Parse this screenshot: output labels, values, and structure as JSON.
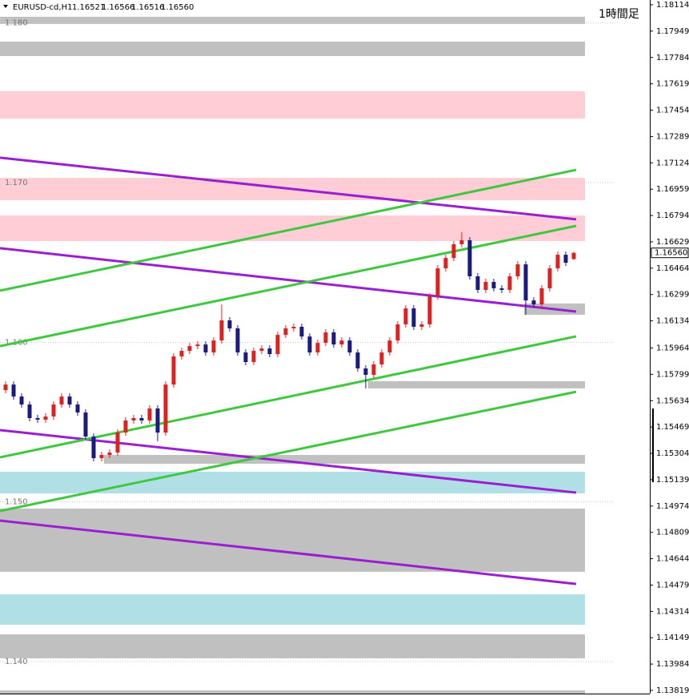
{
  "header": {
    "symbol": "EURUSD-cd,H1",
    "ohlc": [
      "1.16521",
      "1.16566",
      "1.16516",
      "1.16560"
    ],
    "timeframe": "1時間足"
  },
  "chart_data": {
    "type": "candlestick",
    "ylim": [
      1.13799,
      1.18144
    ],
    "yticks": [
      1.18114,
      1.17949,
      1.17784,
      1.17619,
      1.17454,
      1.17289,
      1.17124,
      1.16959,
      1.16794,
      1.16629,
      1.16464,
      1.16299,
      1.16134,
      1.15964,
      1.15799,
      1.15634,
      1.15469,
      1.15304,
      1.15139,
      1.14974,
      1.14809,
      1.14644,
      1.14479,
      1.14314,
      1.14149,
      1.13984,
      1.13819
    ],
    "levels": [
      {
        "value": 1.18,
        "label": "1.180"
      },
      {
        "value": 1.17,
        "label": "1.170"
      },
      {
        "value": 1.16,
        "label": "1.160"
      },
      {
        "value": 1.15,
        "label": "1.150"
      },
      {
        "value": 1.14,
        "label": "1.140"
      }
    ],
    "up_color": "#dd2020",
    "down_color": "#1a1a80",
    "open": [
      1.157,
      1.15735,
      1.1566,
      1.1561,
      1.15525,
      1.15515,
      1.15535,
      1.1561,
      1.1566,
      1.1561,
      1.1556,
      1.15409,
      1.15274,
      1.15294,
      1.15309,
      1.15434,
      1.1551,
      1.15525,
      1.1551,
      1.15585,
      1.15434,
      1.15735,
      1.15911,
      1.15946,
      1.15976,
      1.15986,
      1.15936,
      1.16011,
      1.16137,
      1.16087,
      1.15936,
      1.15876,
      1.15946,
      1.15961,
      1.15926,
      1.16046,
      1.16087,
      1.16097,
      1.16036,
      1.15936,
      1.15996,
      1.16062,
      1.15986,
      1.16011,
      1.15936,
      1.15836,
      1.15796,
      1.15861,
      1.15936,
      1.16011,
      1.16112,
      1.16212,
      1.16097,
      1.16112,
      1.16287,
      1.16463,
      1.16528,
      1.16614,
      1.16639,
      1.16413,
      1.16328,
      1.16378,
      1.16338,
      1.16328,
      1.16413,
      1.16488,
      1.16262,
      1.16237,
      1.16338,
      1.16463,
      1.16548,
      1.16521
    ],
    "high": [
      1.15755,
      1.15755,
      1.1568,
      1.1563,
      1.15545,
      1.15555,
      1.1563,
      1.1568,
      1.1568,
      1.1563,
      1.1558,
      1.15429,
      1.15314,
      1.15329,
      1.15454,
      1.1553,
      1.15545,
      1.15545,
      1.15605,
      1.15605,
      1.15755,
      1.15931,
      1.15966,
      1.15996,
      1.16006,
      1.16006,
      1.16031,
      1.16237,
      1.16157,
      1.16107,
      1.15956,
      1.15966,
      1.15981,
      1.15981,
      1.16066,
      1.16107,
      1.16117,
      1.16117,
      1.16056,
      1.16016,
      1.16082,
      1.16082,
      1.16031,
      1.16031,
      1.15956,
      1.15856,
      1.15881,
      1.15956,
      1.16031,
      1.16132,
      1.16232,
      1.16232,
      1.16132,
      1.16307,
      1.16483,
      1.16548,
      1.16634,
      1.16689,
      1.16659,
      1.16433,
      1.16398,
      1.16398,
      1.16358,
      1.16433,
      1.16508,
      1.16508,
      1.16282,
      1.16358,
      1.16483,
      1.16568,
      1.16568,
      1.16566
    ],
    "low": [
      1.1568,
      1.1564,
      1.1559,
      1.15505,
      1.15495,
      1.15495,
      1.15515,
      1.1559,
      1.1559,
      1.1554,
      1.15389,
      1.15254,
      1.15254,
      1.15274,
      1.15289,
      1.15414,
      1.1549,
      1.1549,
      1.1549,
      1.1538,
      1.15414,
      1.15715,
      1.15891,
      1.15926,
      1.15956,
      1.15916,
      1.15916,
      1.15991,
      1.16067,
      1.15916,
      1.15856,
      1.15856,
      1.15926,
      1.15906,
      1.15906,
      1.16026,
      1.16067,
      1.16016,
      1.15916,
      1.15916,
      1.15976,
      1.15966,
      1.15966,
      1.15916,
      1.15816,
      1.1571,
      1.15776,
      1.15841,
      1.15916,
      1.15991,
      1.16092,
      1.16077,
      1.16077,
      1.16092,
      1.16267,
      1.16443,
      1.16508,
      1.16594,
      1.16393,
      1.16308,
      1.16308,
      1.16318,
      1.16308,
      1.16308,
      1.16393,
      1.16172,
      1.16217,
      1.16217,
      1.16318,
      1.16443,
      1.16478,
      1.16516
    ],
    "close": [
      1.15735,
      1.1566,
      1.1561,
      1.15525,
      1.15515,
      1.15535,
      1.1561,
      1.1566,
      1.1561,
      1.1556,
      1.15409,
      1.15274,
      1.15294,
      1.15309,
      1.15434,
      1.1551,
      1.15525,
      1.1551,
      1.15585,
      1.15434,
      1.15735,
      1.15911,
      1.15946,
      1.15976,
      1.15986,
      1.15936,
      1.16011,
      1.16137,
      1.16087,
      1.15936,
      1.15876,
      1.15946,
      1.15961,
      1.15926,
      1.16046,
      1.16087,
      1.16097,
      1.16036,
      1.15936,
      1.15996,
      1.16062,
      1.15986,
      1.16011,
      1.15936,
      1.15836,
      1.15796,
      1.15861,
      1.15936,
      1.16011,
      1.16112,
      1.16212,
      1.16097,
      1.16112,
      1.16287,
      1.16463,
      1.16528,
      1.16614,
      1.16639,
      1.16413,
      1.16328,
      1.16378,
      1.16338,
      1.16328,
      1.16413,
      1.16488,
      1.16262,
      1.16237,
      1.16338,
      1.16463,
      1.16548,
      1.16498,
      1.1656
    ],
    "zones": [
      {
        "low": 1.17994,
        "high": 1.18039,
        "color": "#c0c0c0",
        "start": -0.7
      },
      {
        "low": 1.17793,
        "high": 1.17883,
        "color": "#c0c0c0",
        "start": -0.7
      },
      {
        "low": 1.17401,
        "high": 1.17572,
        "color": "#ffcdd5",
        "start": -0.7
      },
      {
        "low": 1.1689,
        "high": 1.1703,
        "color": "#ffcdd5",
        "start": -0.7
      },
      {
        "low": 1.16634,
        "high": 1.16794,
        "color": "#ffcdd5",
        "start": -0.7
      },
      {
        "low": 1.16172,
        "high": 1.16243,
        "color": "#c0c0c0",
        "start": 64.8
      },
      {
        "low": 1.15711,
        "high": 1.15756,
        "color": "#c0c0c0",
        "start": 45.3
      },
      {
        "low": 1.15239,
        "high": 1.15294,
        "color": "#c0c0c0",
        "start": 12.3
      },
      {
        "low": 1.15053,
        "high": 1.15189,
        "color": "#b0e0e6",
        "start": -0.7
      },
      {
        "low": 1.14562,
        "high": 1.14958,
        "color": "#c0c0c0",
        "start": -0.7
      },
      {
        "low": 1.1423,
        "high": 1.14421,
        "color": "#b0e0e6",
        "start": -0.7
      },
      {
        "low": 1.1402,
        "high": 1.1417,
        "color": "#c0c0c0",
        "start": -0.7
      },
      {
        "low": 1.13799,
        "high": 1.13819,
        "color": "#c0c0c0",
        "start": -0.7
      }
    ],
    "trendlines": [
      {
        "color": "#9b1fd0",
        "from": [
          -0.7,
          1.17156
        ],
        "to": [
          71.3,
          1.1677
        ]
      },
      {
        "color": "#9b1fd0",
        "from": [
          -0.7,
          1.16589
        ],
        "to": [
          71.3,
          1.16192
        ]
      },
      {
        "color": "#9b1fd0",
        "from": [
          -0.7,
          1.1545
        ],
        "to": [
          71.3,
          1.15058
        ]
      },
      {
        "color": "#9b1fd0",
        "from": [
          -0.7,
          1.14883
        ],
        "to": [
          71.3,
          1.14486
        ]
      },
      {
        "color": "#3ec83e",
        "from": [
          -0.7,
          1.16323
        ],
        "to": [
          71.3,
          1.1708
        ]
      },
      {
        "color": "#3ec83e",
        "from": [
          -0.7,
          1.15976
        ],
        "to": [
          71.3,
          1.16729
        ]
      },
      {
        "color": "#3ec83e",
        "from": [
          -0.7,
          1.15279
        ],
        "to": [
          71.3,
          1.16037
        ]
      },
      {
        "color": "#3ec83e",
        "from": [
          -0.7,
          1.14943
        ],
        "to": [
          71.3,
          1.1569
        ]
      }
    ]
  }
}
